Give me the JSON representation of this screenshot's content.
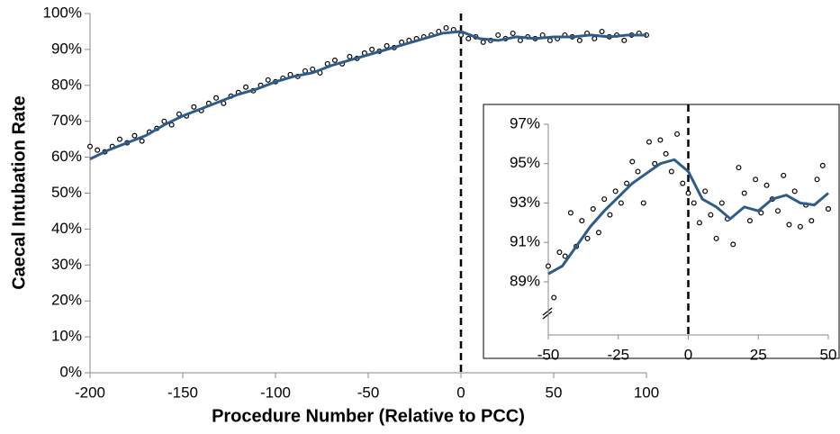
{
  "chart_data": [
    {
      "type": "scatter",
      "xlabel": "Procedure Number (Relative to PCC)",
      "ylabel": "Caecal Intubation Rate",
      "xlim": [
        -200,
        100
      ],
      "xticks": [
        -200,
        -150,
        -100,
        -50,
        0,
        50,
        100
      ],
      "ylim": [
        0,
        100
      ],
      "yticks": [
        {
          "value": 0,
          "label": "0%"
        },
        {
          "value": 10,
          "label": "10%"
        },
        {
          "value": 20,
          "label": "20%"
        },
        {
          "value": 30,
          "label": "30%"
        },
        {
          "value": 40,
          "label": "40%"
        },
        {
          "value": 50,
          "label": "50%"
        },
        {
          "value": 60,
          "label": "60%"
        },
        {
          "value": 70,
          "label": "70%"
        },
        {
          "value": 80,
          "label": "80%"
        },
        {
          "value": 90,
          "label": "90%"
        },
        {
          "value": 100,
          "label": "100%"
        }
      ],
      "vline": 0,
      "series": [
        {
          "kind": "markers",
          "color": "#000000",
          "x": [
            -200,
            -196,
            -192,
            -188,
            -184,
            -180,
            -176,
            -172,
            -168,
            -164,
            -160,
            -156,
            -152,
            -148,
            -144,
            -140,
            -136,
            -132,
            -128,
            -124,
            -120,
            -116,
            -112,
            -108,
            -104,
            -100,
            -96,
            -92,
            -88,
            -84,
            -80,
            -76,
            -72,
            -68,
            -64,
            -60,
            -56,
            -52,
            -48,
            -44,
            -40,
            -36,
            -32,
            -28,
            -24,
            -20,
            -16,
            -12,
            -8,
            -4,
            0,
            4,
            8,
            12,
            16,
            20,
            24,
            28,
            32,
            36,
            40,
            44,
            48,
            52,
            56,
            60,
            64,
            68,
            72,
            76,
            80,
            84,
            88,
            92,
            96,
            100
          ],
          "values": [
            63,
            62,
            61.5,
            63,
            65,
            64,
            66,
            64.5,
            67,
            68,
            70,
            69,
            72,
            71.5,
            74,
            73,
            75,
            76.5,
            75,
            77,
            78,
            79.5,
            78.5,
            80,
            81.5,
            81,
            82,
            83,
            82.5,
            84,
            84.5,
            83.5,
            86,
            87,
            86,
            88,
            87.5,
            89,
            90,
            89.5,
            91,
            90.5,
            92,
            92.5,
            93,
            93.5,
            94,
            95,
            96,
            95.5,
            94,
            93,
            93.5,
            92,
            92.5,
            94,
            93,
            94.5,
            92.5,
            93.5,
            93,
            94,
            92.5,
            93,
            94,
            93.5,
            92.5,
            94.5,
            93,
            95,
            93.5,
            94,
            92.5,
            94,
            94.5,
            94
          ]
        },
        {
          "kind": "line",
          "color": "#2e5c8a",
          "x": [
            -200,
            -190,
            -180,
            -170,
            -160,
            -150,
            -140,
            -130,
            -120,
            -110,
            -100,
            -90,
            -80,
            -70,
            -60,
            -50,
            -40,
            -30,
            -20,
            -10,
            0,
            10,
            20,
            30,
            40,
            50,
            60,
            70,
            80,
            90,
            100
          ],
          "values": [
            59.5,
            62,
            64,
            66,
            69,
            71.5,
            73.5,
            75.5,
            77.5,
            79,
            81,
            82.5,
            83.5,
            85.5,
            87,
            88.5,
            90,
            91.5,
            93,
            94.5,
            95,
            93,
            92.5,
            93.5,
            93,
            93.5,
            93.5,
            94,
            93.5,
            94,
            94
          ]
        }
      ]
    },
    {
      "type": "scatter",
      "xlim": [
        -50,
        50
      ],
      "xticks": [
        -50,
        -25,
        0,
        25,
        50
      ],
      "ylim": [
        86.3,
        97
      ],
      "yticks": [
        {
          "value": 89,
          "label": "89%"
        },
        {
          "value": 91,
          "label": "91%"
        },
        {
          "value": 93,
          "label": "93%"
        },
        {
          "value": 95,
          "label": "95%"
        },
        {
          "value": 97,
          "label": "97%"
        }
      ],
      "vline": 0,
      "series": [
        {
          "kind": "markers",
          "color": "#000000",
          "x": [
            -50,
            -48,
            -46,
            -44,
            -42,
            -40,
            -38,
            -36,
            -34,
            -32,
            -30,
            -28,
            -26,
            -24,
            -22,
            -20,
            -18,
            -16,
            -14,
            -12,
            -10,
            -8,
            -6,
            -4,
            -2,
            0,
            2,
            4,
            6,
            8,
            10,
            12,
            14,
            16,
            18,
            20,
            22,
            24,
            26,
            28,
            30,
            32,
            34,
            36,
            38,
            40,
            42,
            44,
            46,
            48,
            50
          ],
          "values": [
            89.8,
            88.2,
            90.5,
            90.3,
            92.5,
            90.8,
            92.1,
            91.2,
            92.7,
            91.5,
            93.2,
            92.4,
            93.6,
            93.0,
            94.0,
            95.1,
            94.6,
            93.0,
            96.1,
            95.0,
            96.2,
            95.5,
            94.6,
            96.5,
            94.0,
            93.5,
            93.0,
            92.0,
            93.6,
            92.4,
            91.2,
            93.0,
            92.2,
            90.9,
            94.8,
            93.5,
            92.1,
            94.2,
            92.5,
            93.9,
            93.2,
            92.6,
            94.4,
            91.9,
            93.6,
            91.8,
            92.9,
            92.1,
            94.2,
            94.9,
            92.7
          ]
        },
        {
          "kind": "line",
          "color": "#2e5c8a",
          "x": [
            -50,
            -45,
            -40,
            -35,
            -30,
            -25,
            -20,
            -15,
            -10,
            -5,
            0,
            5,
            10,
            15,
            20,
            25,
            30,
            35,
            40,
            45,
            50
          ],
          "values": [
            89.4,
            89.8,
            90.8,
            91.8,
            92.6,
            93.3,
            94.0,
            94.5,
            95.0,
            95.2,
            94.6,
            93.2,
            92.8,
            92.2,
            92.8,
            92.6,
            93.2,
            93.4,
            93.0,
            92.9,
            93.5
          ]
        }
      ]
    }
  ]
}
